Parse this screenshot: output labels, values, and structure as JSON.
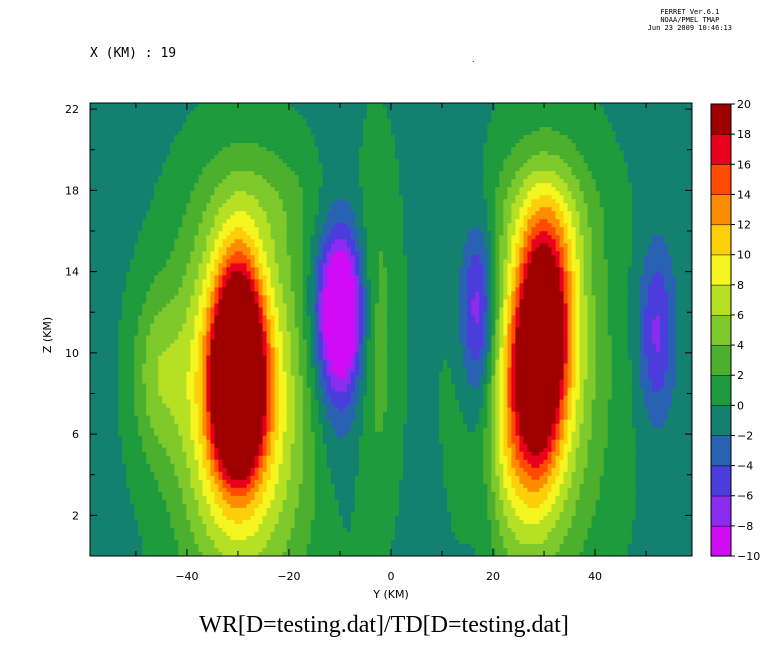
{
  "header": {
    "lines": [
      "FERRET Ver.6.1",
      "NOAA/PMEL TMAP",
      "Jun 23 2009 10:46:13"
    ]
  },
  "slice_label": "X (KM) : 19",
  "plot_title": "WR[D=testing.dat]/TD[D=testing.dat]",
  "chart_data": {
    "type": "heatmap",
    "title": "WR[D=testing.dat]/TD[D=testing.dat]",
    "xlabel": "Y (KM)",
    "ylabel": "Z (KM)",
    "xlim": [
      -59,
      59
    ],
    "ylim": [
      0,
      22.3
    ],
    "x_ticks": [
      -40,
      -20,
      0,
      20,
      40
    ],
    "y_ticks": [
      2,
      6,
      10,
      14,
      18,
      22
    ],
    "colorbar": {
      "levels": [
        -10,
        -8,
        -6,
        -4,
        -2,
        0,
        2,
        4,
        6,
        8,
        10,
        12,
        14,
        16,
        18,
        20
      ],
      "labels": [
        "-10",
        "-8",
        "-6",
        "-4",
        "-2",
        "0",
        "2",
        "4",
        "6",
        "8",
        "10",
        "12",
        "14",
        "16",
        "18",
        "20"
      ],
      "colors": [
        "#d10bf5",
        "#8c2cf0",
        "#4b3ddb",
        "#2a62b3",
        "#14806f",
        "#1e9b3c",
        "#4cb02f",
        "#7ec92b",
        "#b6e023",
        "#f5f51f",
        "#fccf0a",
        "#fd8c00",
        "#ff4a00",
        "#e8001c",
        "#9e0000"
      ]
    },
    "features": [
      {
        "y": -30,
        "z": 8.0,
        "peak": 19.5,
        "sy": 3.0,
        "sz": 2.5
      },
      {
        "y": -30,
        "z": 10.5,
        "peak": 14,
        "sy": 3.0,
        "sz": 3.2
      },
      {
        "y": -31,
        "z": 8.5,
        "peak": 11,
        "sy": 7.0,
        "sz": 5.5
      },
      {
        "y": -27,
        "z": 6.5,
        "peak": 6,
        "sy": 10.0,
        "sz": 7.0
      },
      {
        "y": -46,
        "z": 9.0,
        "peak": 4.5,
        "sy": 3.5,
        "sz": 3.0
      },
      {
        "y": -10,
        "z": 12.0,
        "peak": -11,
        "sy": 3.0,
        "sz": 2.5
      },
      {
        "y": -10,
        "z": 11.0,
        "peak": -5,
        "sy": 4.0,
        "sz": 4.5
      },
      {
        "y": -3,
        "z": 11.0,
        "peak": 4,
        "sy": 3.0,
        "sz": 6.0
      },
      {
        "y": 29,
        "z": 10.0,
        "peak": 13,
        "sy": 3.0,
        "sz": 3.5
      },
      {
        "y": 31,
        "z": 12.5,
        "peak": 10,
        "sy": 4.0,
        "sz": 3.5
      },
      {
        "y": 26,
        "z": 7.0,
        "peak": 9,
        "sy": 5.5,
        "sz": 4.5
      },
      {
        "y": 30,
        "z": 9.0,
        "peak": 7,
        "sy": 9.0,
        "sz": 7.0
      },
      {
        "y": 17,
        "z": 12.0,
        "peak": -7,
        "sy": 2.5,
        "sz": 3.0
      },
      {
        "y": 18,
        "z": 8.0,
        "peak": -3,
        "sy": 2.5,
        "sz": 6.0
      },
      {
        "y": 52,
        "z": 11.0,
        "peak": -6,
        "sy": 2.5,
        "sz": 3.0
      },
      {
        "y": -24,
        "z": 17.5,
        "peak": 2,
        "sy": 9.0,
        "sz": 2.0
      },
      {
        "y": 30,
        "z": 17.0,
        "peak": 3,
        "sy": 7.0,
        "sz": 2.0
      }
    ]
  }
}
